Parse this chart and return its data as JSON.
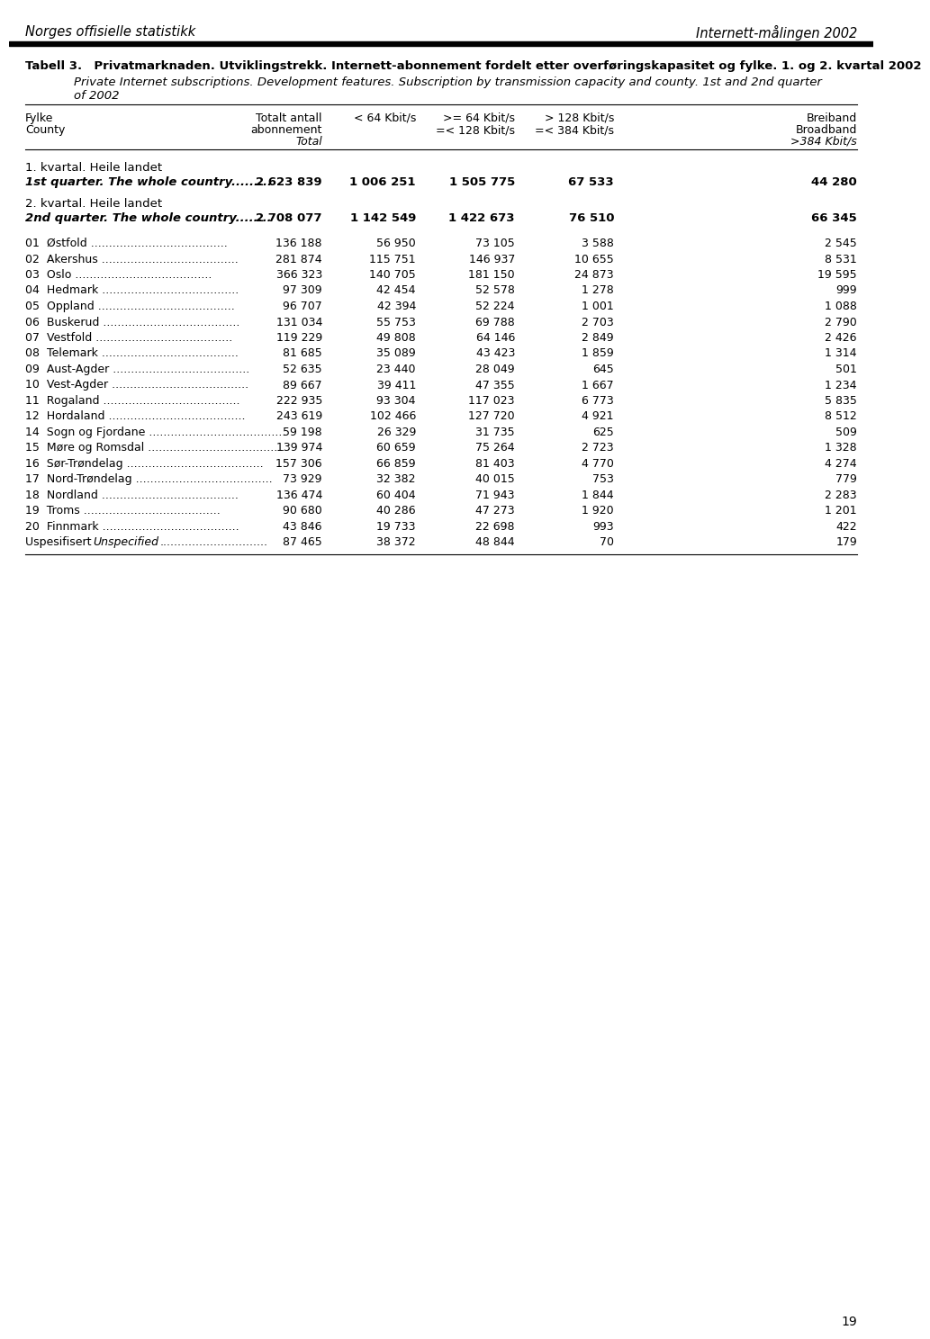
{
  "header_left": "Norges offisielle statistikk",
  "header_right": "Internett-målingen 2002",
  "title_bold_line1": "Tabell 3. Privatmarknaden. Utviklingstrekk. Internett-abonnement fordelt etter overføringskapasitet og fylke. 1. og 2. kvartal 2002",
  "title_italic_line1": "Private Internet subscriptions. Development features. Subscription by transmission capacity and county. 1st and 2nd quarter",
  "title_italic_line2": "of 2002",
  "title_italic_indent": 72,
  "col_headers": [
    [
      "Fylke",
      "County",
      ""
    ],
    [
      "Totalt antall",
      "abonnement",
      "Total"
    ],
    [
      "< 64 Kbit/s",
      "",
      ""
    ],
    [
      ">= 64 Kbit/s",
      "=< 128 Kbit/s",
      ""
    ],
    [
      "> 128 Kbit/s",
      "=< 384 Kbit/s",
      ""
    ],
    [
      "Breiband",
      "Broadband",
      ">384 Kbit/s"
    ]
  ],
  "section1_label": "1. kvartal. Heile landet",
  "section1_sublabel": "1st quarter. The whole country",
  "section1_dots": ".........",
  "section1_data": [
    "2 623 839",
    "1 006 251",
    "1 505 775",
    "67 533",
    "44 280"
  ],
  "section2_label": "2. kvartal. Heile landet",
  "section2_sublabel": "2nd quarter. The whole country",
  "section2_dots": "........",
  "section2_data": [
    "2 708 077",
    "1 142 549",
    "1 422 673",
    "76 510",
    "66 345"
  ],
  "rows": [
    [
      "01  Østfold",
      "136 188",
      "56 950",
      "73 105",
      "3 588",
      "2 545"
    ],
    [
      "02  Akershus",
      "281 874",
      "115 751",
      "146 937",
      "10 655",
      "8 531"
    ],
    [
      "03  Oslo",
      "366 323",
      "140 705",
      "181 150",
      "24 873",
      "19 595"
    ],
    [
      "04  Hedmark",
      "97 309",
      "42 454",
      "52 578",
      "1 278",
      "999"
    ],
    [
      "05  Oppland",
      "96 707",
      "42 394",
      "52 224",
      "1 001",
      "1 088"
    ],
    [
      "06  Buskerud",
      "131 034",
      "55 753",
      "69 788",
      "2 703",
      "2 790"
    ],
    [
      "07  Vestfold",
      "119 229",
      "49 808",
      "64 146",
      "2 849",
      "2 426"
    ],
    [
      "08  Telemark",
      "81 685",
      "35 089",
      "43 423",
      "1 859",
      "1 314"
    ],
    [
      "09  Aust-Agder",
      "52 635",
      "23 440",
      "28 049",
      "645",
      "501"
    ],
    [
      "10  Vest-Agder",
      "89 667",
      "39 411",
      "47 355",
      "1 667",
      "1 234"
    ],
    [
      "11  Rogaland",
      "222 935",
      "93 304",
      "117 023",
      "6 773",
      "5 835"
    ],
    [
      "12  Hordaland",
      "243 619",
      "102 466",
      "127 720",
      "4 921",
      "8 512"
    ],
    [
      "14  Sogn og Fjordane",
      "59 198",
      "26 329",
      "31 735",
      "625",
      "509"
    ],
    [
      "15  Møre og Romsdal",
      "139 974",
      "60 659",
      "75 264",
      "2 723",
      "1 328"
    ],
    [
      "16  Sør-Trøndelag",
      "157 306",
      "66 859",
      "81 403",
      "4 770",
      "4 274"
    ],
    [
      "17  Nord-Trøndelag",
      "73 929",
      "32 382",
      "40 015",
      "753",
      "779"
    ],
    [
      "18  Nordland",
      "136 474",
      "60 404",
      "71 943",
      "1 844",
      "2 283"
    ],
    [
      "19  Troms",
      "90 680",
      "40 286",
      "47 273",
      "1 920",
      "1 201"
    ],
    [
      "20  Finnmark",
      "43 846",
      "19 733",
      "22 698",
      "993",
      "422"
    ],
    [
      "Uspesifisert Unspecified",
      "87 465",
      "38 372",
      "48 844",
      "70",
      "179"
    ]
  ],
  "page_number": "19",
  "bg_color": "#ffffff",
  "text_color": "#000000"
}
